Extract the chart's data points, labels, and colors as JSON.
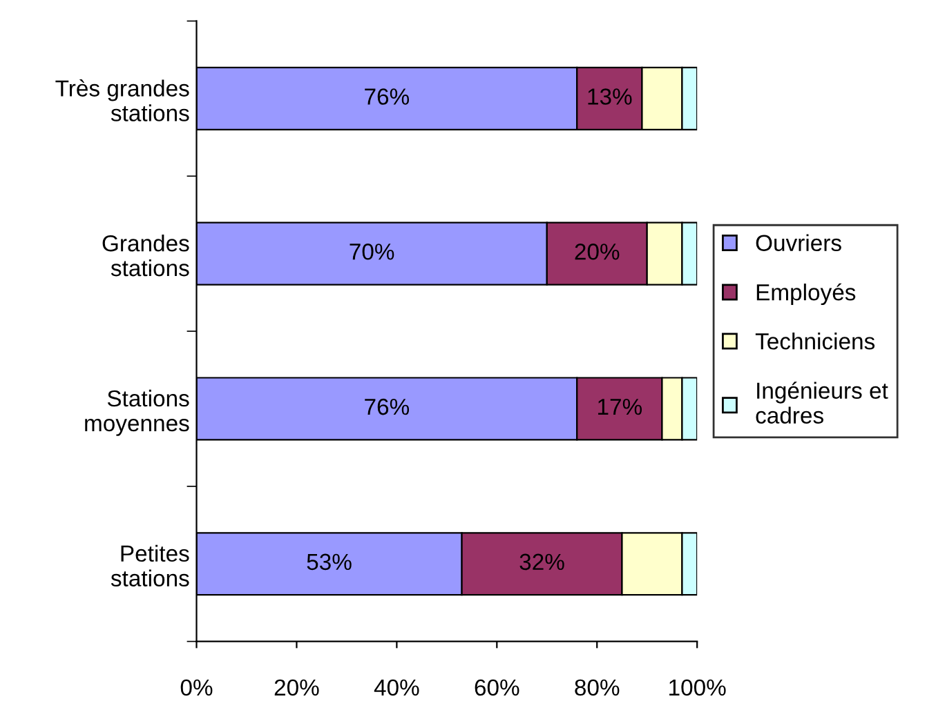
{
  "chart_data": {
    "type": "bar",
    "orientation": "horizontal",
    "stacked": true,
    "categories": [
      "Très grandes\nstations",
      "Grandes\nstations",
      "Stations\nmoyennes",
      "Petites\nstations"
    ],
    "series": [
      {
        "name": "Ouvriers",
        "color": "#9999ff",
        "values": [
          76,
          70,
          76,
          53
        ],
        "value_labels": [
          "76%",
          "70%",
          "76%",
          "53%"
        ]
      },
      {
        "name": "Employés",
        "color": "#993366",
        "values": [
          13,
          20,
          17,
          32
        ],
        "value_labels": [
          "13%",
          "20%",
          "17%",
          "32%"
        ]
      },
      {
        "name": "Techniciens",
        "color": "#ffffcc",
        "values": [
          8,
          7,
          4,
          12
        ]
      },
      {
        "name": "Ingénieurs et\ncadres",
        "color": "#ccffff",
        "values": [
          3,
          3,
          3,
          3
        ]
      }
    ],
    "xlim": [
      0,
      100
    ],
    "xticks": [
      {
        "value": 0,
        "label": "0%"
      },
      {
        "value": 20,
        "label": "20%"
      },
      {
        "value": 40,
        "label": "40%"
      },
      {
        "value": 60,
        "label": "60%"
      },
      {
        "value": 80,
        "label": "80%"
      },
      {
        "value": 100,
        "label": "100%"
      }
    ],
    "grid": false,
    "legend": "right"
  }
}
